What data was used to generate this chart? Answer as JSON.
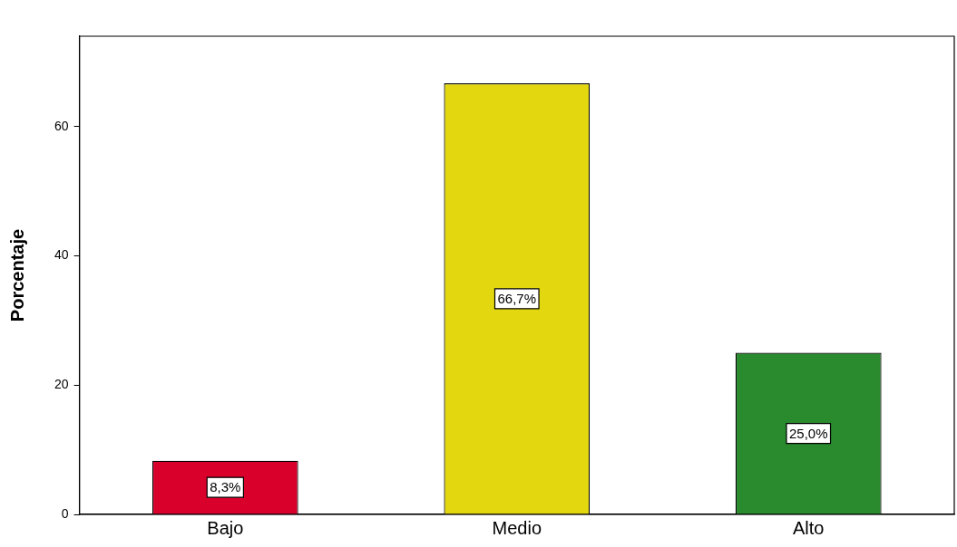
{
  "chart_data": {
    "type": "bar",
    "ylabel": "Porcentaje",
    "categories": [
      "Bajo",
      "Medio",
      "Alto"
    ],
    "values": [
      8.3,
      66.7,
      25.0
    ],
    "colors": [
      "#d9002c",
      "#e3d70f",
      "#2a8a2e"
    ],
    "value_labels": [
      "8,3%",
      "66,7%",
      "25,0%"
    ],
    "ylim": [
      0,
      74
    ],
    "yticks": [
      0,
      20,
      40,
      60
    ],
    "grid": false,
    "legend": false
  }
}
